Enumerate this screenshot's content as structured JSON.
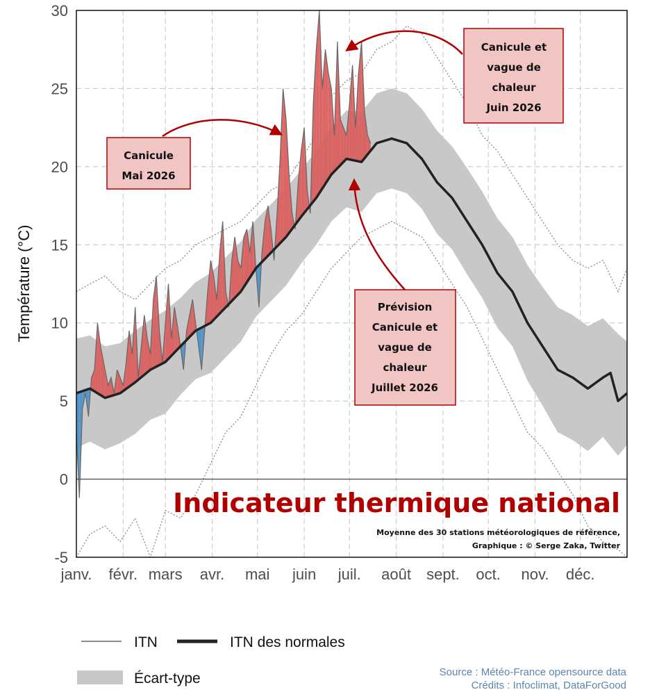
{
  "chart_data": {
    "type": "area",
    "title": "Indicateur thermique national",
    "subtitle_lines": [
      "Moyenne des 30 stations météorologiques de référence,",
      "Graphique : © Serge Zaka, Twitter"
    ],
    "ylabel": "Température (°C)",
    "xlabel": "",
    "ylim": [
      -5,
      30
    ],
    "xlim": [
      1,
      366
    ],
    "yticks": [
      "-5",
      "0",
      "5",
      "10",
      "15",
      "20",
      "25",
      "30"
    ],
    "month_labels": [
      {
        "label": "janv.",
        "day": 1
      },
      {
        "label": "févr.",
        "day": 32
      },
      {
        "label": "mars",
        "day": 60
      },
      {
        "label": "avr.",
        "day": 91
      },
      {
        "label": "mai",
        "day": 121
      },
      {
        "label": "juin",
        "day": 152
      },
      {
        "label": "juil.",
        "day": 182
      },
      {
        "label": "août",
        "day": 213
      },
      {
        "label": "sept.",
        "day": 244
      },
      {
        "label": "oct.",
        "day": 274
      },
      {
        "label": "nov.",
        "day": 305
      },
      {
        "label": "déc.",
        "day": 335
      }
    ],
    "grid": true,
    "normal": {
      "name": "ITN des normales",
      "x": [
        1,
        10,
        20,
        30,
        40,
        50,
        60,
        70,
        80,
        90,
        100,
        110,
        120,
        130,
        140,
        150,
        160,
        170,
        180,
        190,
        200,
        210,
        220,
        230,
        240,
        250,
        260,
        270,
        280,
        290,
        300,
        310,
        320,
        330,
        340,
        350,
        355,
        360,
        366
      ],
      "y": [
        5.5,
        5.8,
        5.2,
        5.5,
        6.2,
        7.0,
        7.5,
        8.5,
        9.5,
        10.0,
        11.0,
        12.0,
        13.5,
        14.5,
        15.5,
        16.8,
        18.0,
        19.5,
        20.5,
        20.3,
        21.5,
        21.8,
        21.5,
        20.5,
        19.0,
        18.0,
        16.5,
        15.0,
        13.2,
        12.0,
        10.0,
        8.5,
        7.0,
        6.5,
        5.8,
        6.5,
        6.8,
        5.0,
        5.5
      ]
    },
    "std_band": {
      "name": "Écart-type",
      "x": [
        1,
        10,
        20,
        30,
        40,
        50,
        60,
        70,
        80,
        90,
        100,
        110,
        120,
        130,
        140,
        150,
        160,
        170,
        180,
        190,
        200,
        210,
        220,
        230,
        240,
        250,
        260,
        270,
        280,
        290,
        300,
        310,
        320,
        330,
        340,
        350,
        360,
        366
      ],
      "upper": [
        9.0,
        9.2,
        8.5,
        8.7,
        9.5,
        10.2,
        10.8,
        11.6,
        12.6,
        13.2,
        14.2,
        15.2,
        16.6,
        17.6,
        18.6,
        19.8,
        21.0,
        22.5,
        23.6,
        23.5,
        24.7,
        25.0,
        24.7,
        23.7,
        22.3,
        21.3,
        19.9,
        18.4,
        16.7,
        15.5,
        13.7,
        12.3,
        11.0,
        10.5,
        9.8,
        10.3,
        9.3,
        8.8
      ],
      "lower": [
        2.0,
        2.4,
        1.9,
        2.3,
        2.9,
        3.8,
        4.2,
        5.4,
        6.4,
        6.8,
        7.8,
        8.8,
        10.4,
        11.4,
        12.4,
        13.8,
        15.0,
        16.5,
        17.4,
        17.1,
        18.3,
        18.6,
        18.3,
        17.3,
        15.7,
        14.7,
        13.1,
        11.6,
        9.7,
        8.5,
        6.3,
        4.7,
        3.0,
        2.5,
        1.8,
        2.7,
        1.5,
        2.2
      ]
    },
    "observed": {
      "name": "ITN",
      "x": [
        1,
        3,
        5,
        7,
        9,
        11,
        13,
        15,
        17,
        20,
        22,
        24,
        26,
        28,
        30,
        32,
        34,
        36,
        38,
        40,
        42,
        44,
        46,
        48,
        50,
        52,
        54,
        56,
        58,
        60,
        62,
        64,
        66,
        68,
        70,
        72,
        74,
        76,
        78,
        80,
        82,
        84,
        86,
        88,
        90,
        92,
        94,
        96,
        98,
        100,
        102,
        104,
        106,
        108,
        110,
        112,
        114,
        116,
        118,
        120,
        122,
        124,
        126,
        128,
        130,
        132,
        134,
        136,
        138,
        140,
        142,
        144,
        146,
        148,
        150,
        152,
        154,
        156,
        158,
        160,
        162,
        164,
        166,
        168,
        170,
        172,
        174,
        176,
        178,
        180,
        182,
        184,
        186,
        188,
        190,
        192,
        194,
        196
      ],
      "y": [
        3.0,
        -1.2,
        4.5,
        5.5,
        4.0,
        6.5,
        7.0,
        10.0,
        8.5,
        7.0,
        6.0,
        6.5,
        5.5,
        7.0,
        6.5,
        6.0,
        7.5,
        9.5,
        8.0,
        11.0,
        6.5,
        8.5,
        10.5,
        9.0,
        8.0,
        11.5,
        13.0,
        9.5,
        7.5,
        10.0,
        12.5,
        9.0,
        11.0,
        9.8,
        8.5,
        7.0,
        9.5,
        10.5,
        11.5,
        10.0,
        8.5,
        7.0,
        9.5,
        12.0,
        14.0,
        13.0,
        11.5,
        14.5,
        16.5,
        12.0,
        11.0,
        14.0,
        15.5,
        14.0,
        13.5,
        15.5,
        16.0,
        14.5,
        16.5,
        13.5,
        11.0,
        14.5,
        16.5,
        17.5,
        16.0,
        14.0,
        17.0,
        20.5,
        25.0,
        23.0,
        19.5,
        17.0,
        16.0,
        19.0,
        21.0,
        22.5,
        18.5,
        17.0,
        24.0,
        27.5,
        30.0,
        25.0,
        27.5,
        26.0,
        25.0,
        22.0,
        28.0,
        23.0,
        22.5,
        22.0,
        24.0,
        26.5,
        22.5,
        26.0,
        28.0,
        23.5,
        22.0,
        21.5
      ]
    },
    "normal_high_dotted": {
      "x": [
        1,
        10,
        20,
        30,
        40,
        50,
        60,
        70,
        80,
        90,
        100,
        110,
        120,
        130,
        140,
        150,
        160,
        170,
        180,
        190,
        200,
        210,
        220,
        230,
        240,
        250,
        260,
        270,
        280,
        290,
        300,
        310,
        320,
        330,
        340,
        350,
        360,
        366
      ],
      "y": [
        12.0,
        12.5,
        13.0,
        12.0,
        11.5,
        12.5,
        13.5,
        14.0,
        15.0,
        15.5,
        16.0,
        16.5,
        17.5,
        18.5,
        19.0,
        20.5,
        22.0,
        24.5,
        25.5,
        26.0,
        27.5,
        28.0,
        29.0,
        28.5,
        27.0,
        25.5,
        24.0,
        22.0,
        21.0,
        19.5,
        18.0,
        16.5,
        15.0,
        14.0,
        13.5,
        14.0,
        12.0,
        13.5
      ]
    },
    "normal_low_dotted": {
      "x": [
        1,
        10,
        20,
        30,
        40,
        50,
        60,
        70,
        80,
        90,
        100,
        110,
        120,
        130,
        140,
        150,
        160,
        170,
        180,
        190,
        200,
        210,
        220,
        230,
        240,
        250,
        260,
        270,
        280,
        290,
        300,
        310,
        320,
        330,
        340,
        350,
        360,
        366
      ],
      "y": [
        -5.0,
        -3.5,
        -3.0,
        -4.0,
        -2.5,
        -5.0,
        -2.0,
        -2.5,
        -1.0,
        1.0,
        3.0,
        4.0,
        6.0,
        8.0,
        9.5,
        10.5,
        12.0,
        13.5,
        14.5,
        15.5,
        16.0,
        16.5,
        16.0,
        15.5,
        14.0,
        12.5,
        11.0,
        9.0,
        7.0,
        5.0,
        3.0,
        2.0,
        0.5,
        -1.0,
        -3.0,
        -4.0,
        -4.5,
        -5.0
      ]
    },
    "annotations": [
      {
        "lines": [
          "Canicule et",
          "vague de",
          "chaleur",
          "Juin 2026"
        ]
      },
      {
        "lines": [
          "Canicule",
          "Mai 2026"
        ]
      },
      {
        "lines": [
          "Prévision",
          "Canicule et",
          "vague de",
          "chaleur",
          "Juillet 2026"
        ]
      }
    ],
    "legend": [
      {
        "label": "ITN",
        "style": "thin-line"
      },
      {
        "label": "ITN des normales",
        "style": "thick-line"
      },
      {
        "label": "Écart-type",
        "style": "band"
      }
    ],
    "colors": {
      "above_normal": "#d9605f",
      "below_normal": "#4f94c9",
      "normal_line": "#222222",
      "band": "#c8c8c8",
      "title": "#b00000",
      "annotation_fill": "#f2c5c5",
      "annotation_border": "#b00000",
      "arrow": "#b00000"
    }
  },
  "source": {
    "line1": "Source : Météo-France opensource data",
    "line2": "Crédits : Infoclimat, DataForGood"
  }
}
